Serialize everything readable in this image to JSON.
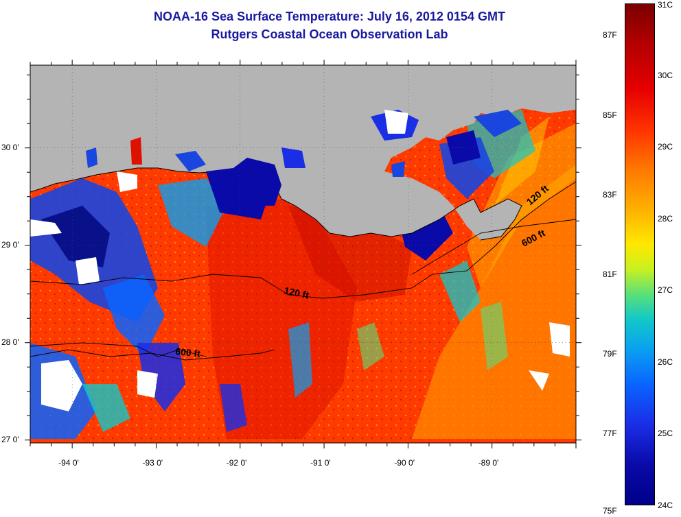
{
  "title": {
    "line1": "NOAA-16 Sea Surface Temperature:  July 16, 2012 0154 GMT",
    "line2": "Rutgers Coastal Ocean Observation Lab"
  },
  "map": {
    "lon_range": [
      -94.5,
      -88.0
    ],
    "lat_range": [
      26.97,
      30.85
    ],
    "x_ticks": [
      {
        "value": -94,
        "label": "-94 0'"
      },
      {
        "value": -93,
        "label": "-93 0'"
      },
      {
        "value": -92,
        "label": "-92 0'"
      },
      {
        "value": -91,
        "label": "-91 0'"
      },
      {
        "value": -90,
        "label": "-90 0'"
      },
      {
        "value": -89,
        "label": "-89 0'"
      }
    ],
    "y_ticks": [
      {
        "value": 30,
        "label": "30 0'"
      },
      {
        "value": 29,
        "label": "29 0'"
      },
      {
        "value": 28,
        "label": "28 0'"
      },
      {
        "value": 27,
        "label": "27 0'"
      }
    ],
    "land_color": "#b4b4b4",
    "isobaths": [
      {
        "label": "120 ft"
      },
      {
        "label": "600 ft"
      },
      {
        "label": "120 ft"
      },
      {
        "label": "600 ft"
      }
    ]
  },
  "colorbar": {
    "celsius": [
      "31C",
      "30C",
      "29C",
      "28C",
      "27C",
      "26C",
      "25C",
      "24C"
    ],
    "fahrenheit": [
      "87F",
      "85F",
      "83F",
      "81F",
      "79F",
      "77F",
      "75F"
    ],
    "celsius_range": [
      24,
      31
    ]
  }
}
